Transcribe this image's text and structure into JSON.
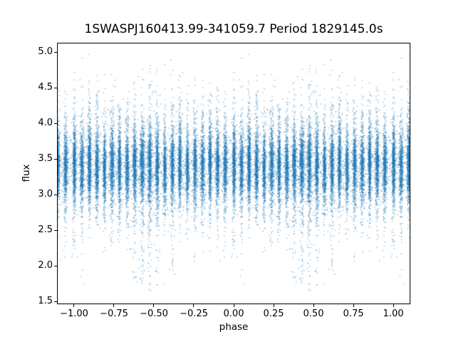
{
  "chart_data": {
    "type": "scatter",
    "title": "1SWASPJ160413.99-341059.7 Period 1829145.0s",
    "xlabel": "phase",
    "ylabel": "flux",
    "xlim": [
      -1.107,
      1.107
    ],
    "ylim": [
      1.46,
      5.13
    ],
    "xticks": [
      -1.0,
      -0.75,
      -0.5,
      -0.25,
      0.0,
      0.25,
      0.5,
      0.75,
      1.0
    ],
    "xtick_labels": [
      "−1.00",
      "−0.75",
      "−0.50",
      "−0.25",
      "0.00",
      "0.25",
      "0.50",
      "0.75",
      "1.00"
    ],
    "yticks": [
      1.5,
      2.0,
      2.5,
      3.0,
      3.5,
      4.0,
      4.5,
      5.0
    ],
    "ytick_labels": [
      "1.5",
      "2.0",
      "2.5",
      "3.0",
      "3.5",
      "4.0",
      "4.5",
      "5.0"
    ],
    "grid": false,
    "legend": null,
    "marker_color": "#1f77b4",
    "marker_alpha": 0.6,
    "marker_size_px": 1.25,
    "fold_copies": [
      -2,
      -1,
      0,
      1
    ],
    "seed": 77041399,
    "wide_frac": 0.1,
    "wide_mult": 4.0,
    "up_spread": 0.42,
    "down_spread": 0.34,
    "flux_min": 1.58,
    "flux_max": 5.0,
    "bands": [
      {
        "phase": 0.002,
        "n": 900,
        "mean": 3.4,
        "core": 0.21,
        "width": 0.005,
        "tail_to": 2.0,
        "tail_frac": 0.02,
        "hi_frac": 0.0
      },
      {
        "phase": 0.049,
        "n": 760,
        "mean": 3.36,
        "core": 0.2,
        "width": 0.006,
        "tail_to": 1.7,
        "tail_frac": 0.003,
        "hi_frac": 0.002
      },
      {
        "phase": 0.096,
        "n": 980,
        "mean": 3.42,
        "core": 0.22,
        "width": 0.005,
        "tail_to": 2.7,
        "tail_frac": 0.008,
        "hi_frac": 0.0
      },
      {
        "phase": 0.144,
        "n": 840,
        "mean": 3.38,
        "core": 0.2,
        "width": 0.006,
        "tail_to": 2.75,
        "tail_frac": 0.006,
        "hi_frac": 0.0
      },
      {
        "phase": 0.191,
        "n": 700,
        "mean": 3.34,
        "core": 0.19,
        "width": 0.005,
        "tail_to": 2.6,
        "tail_frac": 0.008,
        "hi_frac": 0.0
      },
      {
        "phase": 0.238,
        "n": 880,
        "mean": 3.4,
        "core": 0.22,
        "width": 0.007,
        "tail_to": 2.2,
        "tail_frac": 0.014,
        "hi_frac": 0.0
      },
      {
        "phase": 0.285,
        "n": 820,
        "mean": 3.37,
        "core": 0.21,
        "width": 0.005,
        "tail_to": 2.3,
        "tail_frac": 0.01,
        "hi_frac": 0.0
      },
      {
        "phase": 0.333,
        "n": 760,
        "mean": 3.35,
        "core": 0.2,
        "width": 0.006,
        "tail_to": 2.5,
        "tail_frac": 0.01,
        "hi_frac": 0.0
      },
      {
        "phase": 0.38,
        "n": 900,
        "mean": 3.38,
        "core": 0.22,
        "width": 0.006,
        "tail_to": 1.68,
        "tail_frac": 0.045,
        "hi_frac": 0.0
      },
      {
        "phase": 0.427,
        "n": 950,
        "mean": 3.41,
        "core": 0.23,
        "width": 0.007,
        "tail_to": 1.66,
        "tail_frac": 0.055,
        "hi_frac": 0.0
      },
      {
        "phase": 0.474,
        "n": 980,
        "mean": 3.39,
        "core": 0.23,
        "width": 0.006,
        "tail_to": 1.64,
        "tail_frac": 0.06,
        "hi_frac": 0.006
      },
      {
        "phase": 0.521,
        "n": 860,
        "mean": 3.37,
        "core": 0.22,
        "width": 0.006,
        "tail_to": 1.72,
        "tail_frac": 0.04,
        "hi_frac": 0.004
      },
      {
        "phase": 0.569,
        "n": 700,
        "mean": 3.33,
        "core": 0.19,
        "width": 0.005,
        "tail_to": 2.6,
        "tail_frac": 0.008,
        "hi_frac": 0.0
      },
      {
        "phase": 0.616,
        "n": 840,
        "mean": 3.38,
        "core": 0.21,
        "width": 0.006,
        "tail_to": 1.78,
        "tail_frac": 0.028,
        "hi_frac": 0.002
      },
      {
        "phase": 0.663,
        "n": 920,
        "mean": 3.42,
        "core": 0.22,
        "width": 0.005,
        "tail_to": 2.65,
        "tail_frac": 0.008,
        "hi_frac": 0.0
      },
      {
        "phase": 0.71,
        "n": 680,
        "mean": 3.35,
        "core": 0.2,
        "width": 0.005,
        "tail_to": 2.55,
        "tail_frac": 0.008,
        "hi_frac": 0.0
      },
      {
        "phase": 0.758,
        "n": 800,
        "mean": 3.38,
        "core": 0.21,
        "width": 0.006,
        "tail_to": 1.88,
        "tail_frac": 0.026,
        "hi_frac": 0.0
      },
      {
        "phase": 0.805,
        "n": 740,
        "mean": 3.36,
        "core": 0.2,
        "width": 0.006,
        "tail_to": 2.0,
        "tail_frac": 0.018,
        "hi_frac": 0.0
      },
      {
        "phase": 0.852,
        "n": 880,
        "mean": 3.41,
        "core": 0.22,
        "width": 0.005,
        "tail_to": 2.1,
        "tail_frac": 0.012,
        "hi_frac": 0.0
      },
      {
        "phase": 0.899,
        "n": 820,
        "mean": 3.39,
        "core": 0.21,
        "width": 0.006,
        "tail_to": 2.0,
        "tail_frac": 0.022,
        "hi_frac": 0.0
      },
      {
        "phase": 0.947,
        "n": 780,
        "mean": 3.37,
        "core": 0.2,
        "width": 0.006,
        "tail_to": 2.05,
        "tail_frac": 0.018,
        "hi_frac": 0.0
      }
    ]
  }
}
